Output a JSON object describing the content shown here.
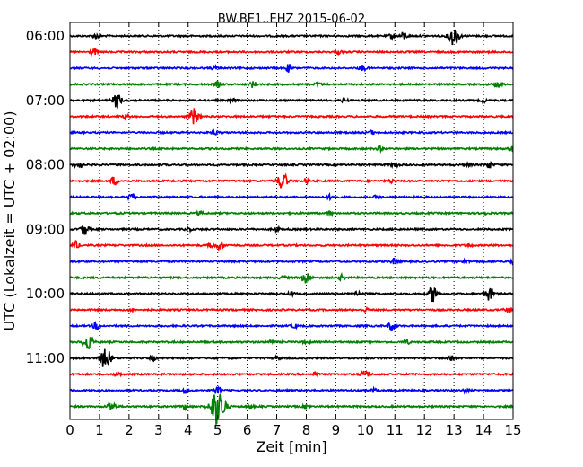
{
  "chart_data": {
    "type": "line",
    "title": "BW.BE1..EHZ 2015-06-02",
    "xlabel": "Zeit  [min]",
    "ylabel": "UTC (Lokalzeit = UTC + 02:00)",
    "xlim": [
      0,
      15
    ],
    "xticks": [
      "0",
      "1",
      "2",
      "3",
      "4",
      "5",
      "6",
      "7",
      "8",
      "9",
      "10",
      "11",
      "12",
      "13",
      "14",
      "15"
    ],
    "yticks": [
      {
        "label": "06:00",
        "trace": 0
      },
      {
        "label": "07:00",
        "trace": 4
      },
      {
        "label": "08:00",
        "trace": 8
      },
      {
        "label": "09:00",
        "trace": 12
      },
      {
        "label": "10:00",
        "trace": 16
      },
      {
        "label": "11:00",
        "trace": 20
      }
    ],
    "grid": "vertical-dotted",
    "colors": [
      "#000000",
      "#ff0000",
      "#0000ff",
      "#008000"
    ],
    "trace_minutes": 15,
    "traces": [
      {
        "start": "06:00",
        "events": [
          [
            0.9,
            0.4
          ],
          [
            11.3,
            0.6
          ],
          [
            13.0,
            1.6
          ],
          [
            10.9,
            0.4
          ]
        ]
      },
      {
        "start": "06:15",
        "events": [
          [
            0.8,
            0.5
          ],
          [
            9.1,
            0.3
          ]
        ]
      },
      {
        "start": "06:30",
        "events": [
          [
            7.4,
            0.6
          ],
          [
            9.9,
            0.5
          ],
          [
            4.9,
            0.3
          ]
        ]
      },
      {
        "start": "06:45",
        "events": [
          [
            5.0,
            0.4
          ],
          [
            6.2,
            0.5
          ],
          [
            8.4,
            0.3
          ],
          [
            14.5,
            0.6
          ]
        ]
      },
      {
        "start": "07:00",
        "events": [
          [
            1.6,
            1.2
          ],
          [
            5.5,
            0.3
          ],
          [
            9.3,
            0.4
          ],
          [
            14.0,
            0.3
          ]
        ]
      },
      {
        "start": "07:15",
        "events": [
          [
            4.2,
            1.3
          ],
          [
            1.9,
            0.3
          ]
        ]
      },
      {
        "start": "07:30",
        "events": [
          [
            4.9,
            0.3
          ],
          [
            10.2,
            0.3
          ]
        ]
      },
      {
        "start": "07:45",
        "events": [
          [
            10.5,
            0.3
          ],
          [
            15.0,
            0.7
          ]
        ]
      },
      {
        "start": "08:00",
        "events": [
          [
            0.3,
            0.7
          ],
          [
            11.0,
            0.4
          ],
          [
            13.5,
            0.3
          ],
          [
            14.2,
            0.5
          ]
        ]
      },
      {
        "start": "08:15",
        "events": [
          [
            1.5,
            0.7
          ],
          [
            7.2,
            1.4
          ],
          [
            8.0,
            0.3
          ],
          [
            10.9,
            0.3
          ]
        ]
      },
      {
        "start": "08:30",
        "events": [
          [
            2.1,
            0.6
          ],
          [
            8.8,
            0.3
          ],
          [
            10.4,
            0.3
          ]
        ]
      },
      {
        "start": "08:45",
        "events": [
          [
            4.4,
            0.3
          ],
          [
            8.8,
            0.3
          ],
          [
            14.0,
            0.3
          ]
        ]
      },
      {
        "start": "09:00",
        "events": [
          [
            0.5,
            0.9
          ],
          [
            4.0,
            0.3
          ],
          [
            7.0,
            0.3
          ]
        ]
      },
      {
        "start": "09:15",
        "events": [
          [
            0.2,
            0.6
          ],
          [
            5.1,
            0.7
          ],
          [
            4.8,
            0.4
          ],
          [
            13.5,
            0.3
          ]
        ]
      },
      {
        "start": "09:30",
        "events": [
          [
            11.0,
            0.5
          ],
          [
            13.4,
            0.3
          ],
          [
            15.0,
            0.4
          ]
        ]
      },
      {
        "start": "09:45",
        "events": [
          [
            8.0,
            1.0
          ],
          [
            7.2,
            0.3
          ],
          [
            9.2,
            0.4
          ]
        ]
      },
      {
        "start": "10:00",
        "events": [
          [
            12.3,
            1.3
          ],
          [
            14.2,
            1.1
          ],
          [
            9.7,
            0.4
          ],
          [
            7.5,
            0.3
          ]
        ]
      },
      {
        "start": "10:15",
        "events": [
          [
            2.1,
            0.3
          ],
          [
            10.0,
            0.3
          ],
          [
            14.8,
            0.3
          ]
        ]
      },
      {
        "start": "10:30",
        "events": [
          [
            0.9,
            0.6
          ],
          [
            10.9,
            0.8
          ],
          [
            7.6,
            0.3
          ]
        ]
      },
      {
        "start": "10:45",
        "events": [
          [
            0.6,
            1.4
          ],
          [
            6.8,
            0.3
          ],
          [
            8.0,
            0.3
          ],
          [
            11.4,
            0.3
          ]
        ]
      },
      {
        "start": "11:00",
        "events": [
          [
            1.2,
            1.8
          ],
          [
            2.8,
            0.4
          ],
          [
            12.9,
            0.5
          ],
          [
            7.0,
            0.3
          ]
        ]
      },
      {
        "start": "11:15",
        "events": [
          [
            10.0,
            0.8
          ],
          [
            1.6,
            0.3
          ],
          [
            8.3,
            0.3
          ]
        ]
      },
      {
        "start": "11:30",
        "events": [
          [
            3.9,
            0.4
          ],
          [
            5.0,
            0.6
          ],
          [
            13.4,
            0.3
          ],
          [
            10.3,
            0.3
          ]
        ]
      },
      {
        "start": "11:45",
        "events": [
          [
            1.4,
            0.8
          ],
          [
            5.0,
            3.0
          ],
          [
            3.9,
            0.4
          ],
          [
            6.1,
            0.3
          ],
          [
            8.0,
            0.3
          ]
        ]
      }
    ]
  }
}
